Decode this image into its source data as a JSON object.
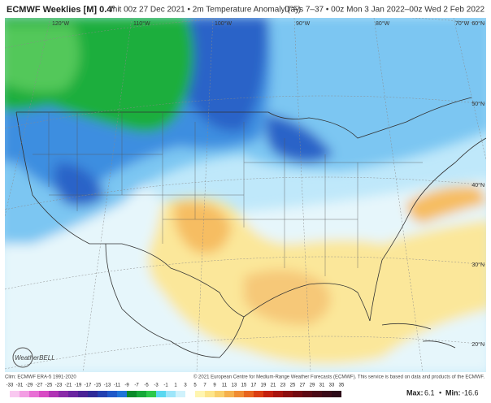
{
  "header": {
    "title": "ECMWF Weeklies [M] 0.4°",
    "subtitle": "Init 00z 27 Dec 2021 • 2m Temperature Anomaly (°F)",
    "period": "Days 7–37 • 00z Mon 3 Jan 2022–00z Wed 2 Feb 2022"
  },
  "map": {
    "lon_labels": [
      "120°W",
      "110°W",
      "100°W",
      "90°W",
      "80°W",
      "70°W"
    ],
    "lat_labels": [
      "60°N",
      "50°N",
      "40°N",
      "30°N",
      "20°N"
    ],
    "logo": "WeatherBELL"
  },
  "footer": {
    "clim": "Clim: ECMWF ERA-5 1991-2020",
    "credit": "© 2021 European Centre for Medium-Range Weather Forecasts (ECMWF). This service is based on data and products of the ECMWF."
  },
  "colorbar": {
    "labels": [
      -33,
      -31,
      -29,
      -27,
      -25,
      -23,
      -21,
      -19,
      -17,
      -15,
      -13,
      -11,
      -9,
      -7,
      -5,
      -3,
      -1,
      1,
      3,
      5,
      7,
      9,
      11,
      13,
      15,
      17,
      19,
      21,
      23,
      25,
      27,
      29,
      31,
      33,
      35
    ],
    "colors": [
      "#f9c8f0",
      "#f39de3",
      "#e86fd4",
      "#d84ac4",
      "#b033b4",
      "#8a2aa8",
      "#6a24a0",
      "#4b2296",
      "#2f2a98",
      "#2240b0",
      "#1f58c8",
      "#1f74d8",
      "#0a8a2a",
      "#16a838",
      "#2cc84a",
      "#5ad8f0",
      "#9ee6fa",
      "#d0f2fc",
      "#ffffff",
      "#fff5b0",
      "#fde58a",
      "#f9cf6a",
      "#f5b04c",
      "#f08c32",
      "#e8651e",
      "#db3e12",
      "#c4200e",
      "#a8140e",
      "#8c0e10",
      "#730a12",
      "#5c0a14",
      "#4a0a16",
      "#3a0a18",
      "#2c0a18"
    ]
  },
  "stats": {
    "max_label": "Max:",
    "max": 6.1,
    "min_label": "Min:",
    "min": -16.6
  }
}
